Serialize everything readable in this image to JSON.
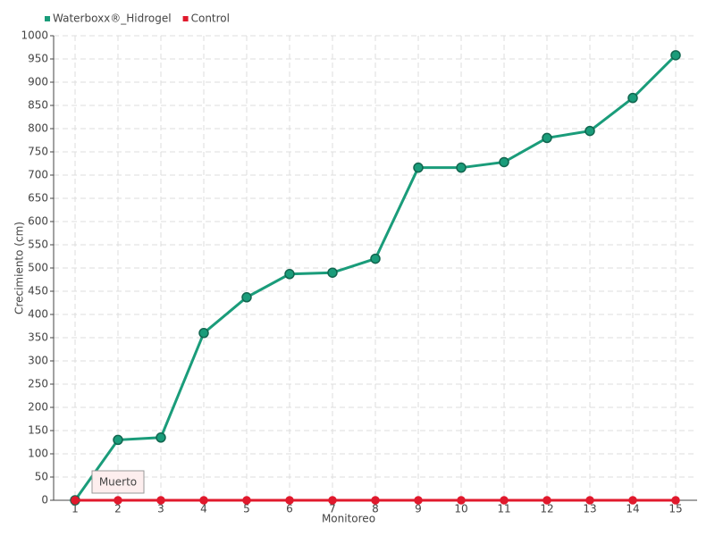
{
  "chart_data": {
    "type": "line",
    "x_label": "Monitoreo",
    "y_label": "Crecimiento (cm)",
    "categories": [
      "1",
      "2",
      "3",
      "4",
      "5",
      "6",
      "7",
      "8",
      "9",
      "10",
      "11",
      "12",
      "13",
      "14",
      "15"
    ],
    "series": [
      {
        "name": "Waterboxx®_Hidrogel",
        "color": "#1a9c7a",
        "values": [
          0,
          130,
          135,
          360,
          437,
          487,
          490,
          520,
          716,
          716,
          728,
          780,
          795,
          866,
          958
        ]
      },
      {
        "name": "Control",
        "color": "#e0192c",
        "values": [
          0,
          0,
          0,
          0,
          0,
          0,
          0,
          0,
          0,
          0,
          0,
          0,
          0,
          0,
          0
        ]
      }
    ],
    "annotation": "Muerto",
    "ylim": [
      0,
      1000
    ],
    "yticks": [
      0,
      50,
      100,
      150,
      200,
      250,
      300,
      350,
      400,
      450,
      500,
      550,
      600,
      650,
      700,
      750,
      800,
      850,
      900,
      950,
      1000
    ],
    "grid": true,
    "legend": "top-left"
  }
}
